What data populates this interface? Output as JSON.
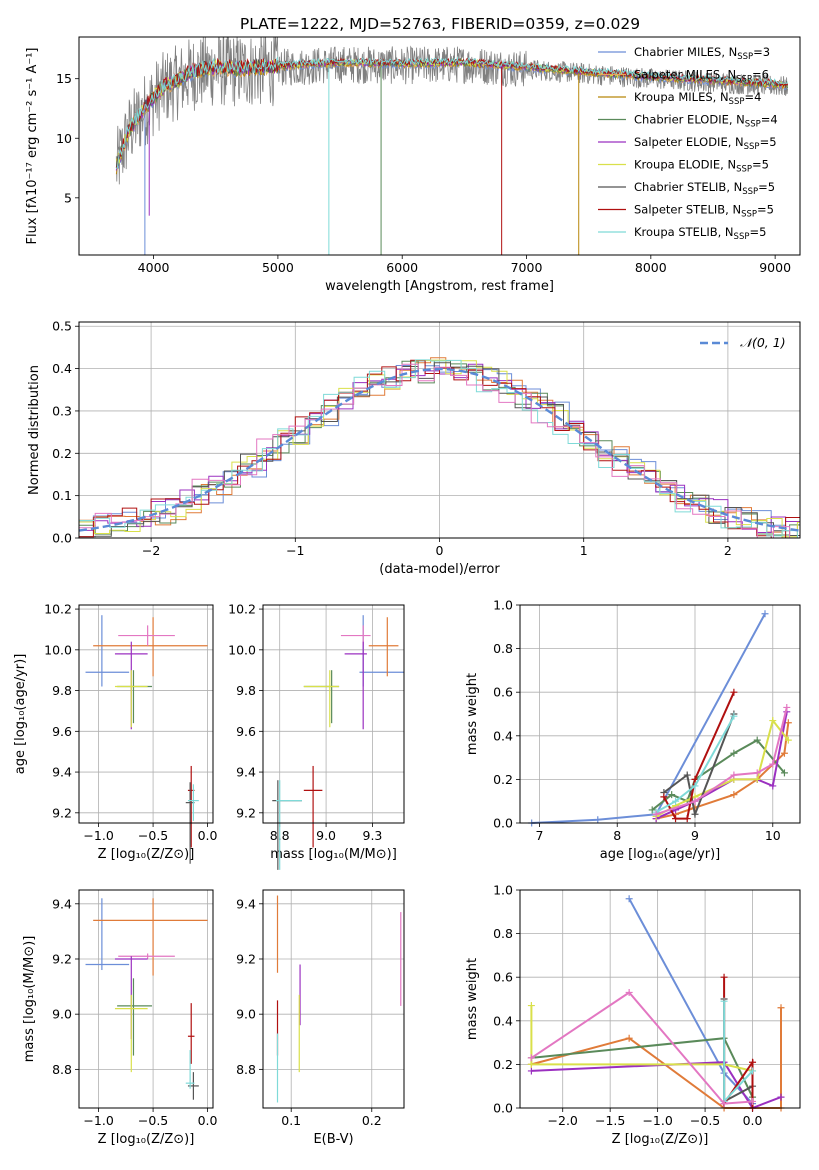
{
  "figure": {
    "title": "PLATE=1222, MJD=52763, FIBERID=0359, z=0.029"
  },
  "chart_data": [
    {
      "id": "spectrum",
      "type": "line",
      "title": "PLATE=1222, MJD=52763, FIBERID=0359, z=0.029",
      "xlabel": "wavelength [Angstrom, rest frame]",
      "ylabel": "Flux [fλ10⁻¹⁷ erg cm⁻² s⁻¹ A⁻¹]",
      "xlim": [
        3400,
        9200
      ],
      "ylim": [
        0.2,
        18.5
      ],
      "xticks": [
        4000,
        5000,
        6000,
        7000,
        8000,
        9000
      ],
      "yticks": [
        5,
        10,
        15
      ],
      "grid": false,
      "legend_position": "top-right",
      "series": [
        {
          "name": "Chabrier MILES, N_SSP=3",
          "color": "#6c8ed8"
        },
        {
          "name": "Salpeter MILES, N_SSP=6",
          "color": "#e6a55a"
        },
        {
          "name": "Kroupa MILES, N_SSP=4",
          "color": "#b8860b"
        },
        {
          "name": "Chabrier ELODIE, N_SSP=4",
          "color": "#5a8a5a"
        },
        {
          "name": "Salpeter ELODIE, N_SSP=5",
          "color": "#9b30c0"
        },
        {
          "name": "Kroupa ELODIE, N_SSP=5",
          "color": "#d9e04a"
        },
        {
          "name": "Chabrier STELIB, N_SSP=5",
          "color": "#555555"
        },
        {
          "name": "Salpeter STELIB, N_SSP=5",
          "color": "#b01010"
        },
        {
          "name": "Kroupa STELIB, N_SSP=5",
          "color": "#7fdad8"
        }
      ],
      "legend_labels": [
        "Chabrier MILES, N",
        "Salpeter MILES, N",
        "Kroupa MILES, N",
        "Chabrier ELODIE, N",
        "Salpeter ELODIE, N",
        "Kroupa ELODIE, N",
        "Chabrier STELIB, N",
        "Salpeter STELIB, N",
        "Kroupa STELIB, N"
      ],
      "legend_counts": [
        "=3",
        "=6",
        "=4",
        "=4",
        "=5",
        "=5",
        "=5",
        "=5",
        "=5"
      ],
      "legend_sub": "SSP",
      "continuum": {
        "x": [
          3700,
          3800,
          3900,
          4000,
          4100,
          4200,
          4300,
          4400,
          4500,
          4700,
          5000,
          5500,
          6000,
          6500,
          7000,
          7500,
          8000,
          8500,
          9000,
          9100
        ],
        "y": [
          7.5,
          10.5,
          12.0,
          13.3,
          14.3,
          14.7,
          15.4,
          15.6,
          15.8,
          15.7,
          15.9,
          16.2,
          16.1,
          16.2,
          15.8,
          15.4,
          15.0,
          14.7,
          14.4,
          14.3
        ]
      },
      "drops": [
        {
          "x": 3930,
          "y_min": 0.2
        },
        {
          "x": 3965,
          "y_min": 3.5
        },
        {
          "x": 5410,
          "y_min": 0.2
        },
        {
          "x": 5830,
          "y_min": 0.2
        },
        {
          "x": 6800,
          "y_min": 0.2
        },
        {
          "x": 7420,
          "y_min": 0.2
        }
      ]
    },
    {
      "id": "residuals",
      "type": "line",
      "xlabel": "(data-model)/error",
      "ylabel": "Normed distribution",
      "xlim": [
        -2.5,
        2.5
      ],
      "ylim": [
        0,
        0.51
      ],
      "xticks": [
        -2,
        -1,
        0,
        1,
        2
      ],
      "yticks": [
        0.0,
        0.1,
        0.2,
        0.3,
        0.4,
        0.5
      ],
      "grid": true,
      "legend_position": "top-right",
      "legend": "𝒩(0, 1)",
      "gaussian": {
        "mean": 0,
        "sigma": 1,
        "color": "#5a8ad6"
      },
      "histogram_colors": [
        "#6c8ed8",
        "#e07b39",
        "#5a8a5a",
        "#9b30c0",
        "#d9e04a",
        "#555555",
        "#b01010",
        "#7fdad8",
        "#e377c2"
      ]
    },
    {
      "id": "age-vs-metallicity",
      "type": "scatter",
      "xlabel": "Z [log₁₀(Z/Z⊙)]",
      "ylabel": "age  [log₁₀(age/yr)]",
      "xlim": [
        -1.18,
        0.05
      ],
      "ylim": [
        9.15,
        10.22
      ],
      "xticks": [
        -1.0,
        -0.5,
        0.0
      ],
      "yticks": [
        9.2,
        9.4,
        9.6,
        9.8,
        10.0,
        10.2
      ],
      "grid": true,
      "points": [
        {
          "x": -0.97,
          "y": 9.89,
          "xerr": [
            0.15,
            0.25
          ],
          "yerr": [
            0.07,
            0.28
          ],
          "color": "#6c8ed8"
        },
        {
          "x": -0.5,
          "y": 10.02,
          "xerr": [
            0.55,
            0.5
          ],
          "yerr": [
            0.15,
            0.14
          ],
          "color": "#e07b39"
        },
        {
          "x": -0.55,
          "y": 10.07,
          "xerr": [
            0.27,
            0.25
          ],
          "yerr": [
            0.05,
            0.05
          ],
          "color": "#e377c2"
        },
        {
          "x": -0.7,
          "y": 9.98,
          "xerr": [
            0.15,
            0.15
          ],
          "yerr": [
            0.37,
            0.06
          ],
          "color": "#9b30c0"
        },
        {
          "x": -0.68,
          "y": 9.82,
          "xerr": [
            0.15,
            0.17
          ],
          "yerr": [
            0.18,
            0.08
          ],
          "color": "#5a8a5a"
        },
        {
          "x": -0.7,
          "y": 9.82,
          "xerr": [
            0.15,
            0.15
          ],
          "yerr": [
            0.2,
            0.08
          ],
          "color": "#d9e04a"
        },
        {
          "x": -0.15,
          "y": 9.31,
          "xerr": [
            0.03,
            0.03
          ],
          "yerr": [
            0.28,
            0.12
          ],
          "color": "#b01010"
        },
        {
          "x": -0.16,
          "y": 9.25,
          "xerr": [
            0.04,
            0.04
          ],
          "yerr": [
            0.3,
            0.1
          ],
          "color": "#555555"
        },
        {
          "x": -0.13,
          "y": 9.26,
          "xerr": [
            0.05,
            0.05
          ],
          "yerr": [
            0.1,
            0.08
          ],
          "color": "#7fdad8"
        }
      ]
    },
    {
      "id": "age-vs-mass",
      "type": "scatter",
      "xlabel": "mass [log₁₀(M/M⊙)]",
      "ylabel": "",
      "xlim": [
        8.66,
        9.42
      ],
      "ylim": [
        9.15,
        10.22
      ],
      "xticks": [
        8.75,
        9.0,
        9.25
      ],
      "yticks": [
        9.2,
        9.4,
        9.6,
        9.8,
        10.0,
        10.2
      ],
      "grid": true,
      "points": [
        {
          "x": 9.2,
          "y": 9.89,
          "xerr": [
            0.02,
            0.22
          ],
          "yerr": [
            0.07,
            0.28
          ],
          "color": "#6c8ed8"
        },
        {
          "x": 9.33,
          "y": 10.02,
          "xerr": [
            0.1,
            0.06
          ],
          "yerr": [
            0.15,
            0.14
          ],
          "color": "#e07b39"
        },
        {
          "x": 9.2,
          "y": 10.07,
          "xerr": [
            0.12,
            0.04
          ],
          "yerr": [
            0.05,
            0.05
          ],
          "color": "#e377c2"
        },
        {
          "x": 9.2,
          "y": 9.98,
          "xerr": [
            0.1,
            0.02
          ],
          "yerr": [
            0.37,
            0.06
          ],
          "color": "#9b30c0"
        },
        {
          "x": 9.03,
          "y": 9.82,
          "xerr": [
            0.15,
            0.04
          ],
          "yerr": [
            0.18,
            0.08
          ],
          "color": "#5a8a5a"
        },
        {
          "x": 9.02,
          "y": 9.82,
          "xerr": [
            0.14,
            0.05
          ],
          "yerr": [
            0.2,
            0.08
          ],
          "color": "#d9e04a"
        },
        {
          "x": 8.93,
          "y": 9.31,
          "xerr": [
            0.05,
            0.05
          ],
          "yerr": [
            0.28,
            0.12
          ],
          "color": "#b01010"
        },
        {
          "x": 8.74,
          "y": 9.26,
          "xerr": [
            0.03,
            0.13
          ],
          "yerr": [
            0.34,
            0.1
          ],
          "color": "#555555"
        },
        {
          "x": 8.75,
          "y": 9.26,
          "xerr": [
            0.02,
            0.12
          ],
          "yerr": [
            0.34,
            0.1
          ],
          "color": "#7fdad8"
        }
      ]
    },
    {
      "id": "mass-weight-vs-age",
      "type": "line",
      "xlabel": "age  [log₁₀(age/yr)]",
      "ylabel": "mass weight",
      "xlim": [
        6.75,
        10.35
      ],
      "ylim": [
        0,
        1.0
      ],
      "xticks": [
        7,
        8,
        9,
        10
      ],
      "yticks": [
        0.0,
        0.2,
        0.4,
        0.6,
        0.8,
        1.0
      ],
      "grid": true,
      "series": [
        {
          "color": "#6c8ed8",
          "x": [
            6.9,
            7.75,
            8.5,
            9.9
          ],
          "y": [
            0.0,
            0.015,
            0.04,
            0.96
          ]
        },
        {
          "color": "#e07b39",
          "x": [
            8.5,
            8.75,
            9.0,
            9.5,
            9.8,
            10.15,
            10.2
          ],
          "y": [
            0.02,
            0.04,
            0.07,
            0.13,
            0.2,
            0.32,
            0.46
          ]
        },
        {
          "color": "#5a8a5a",
          "x": [
            8.45,
            8.7,
            8.9,
            9.0,
            9.5,
            9.8,
            10.15
          ],
          "y": [
            0.06,
            0.13,
            0.1,
            0.2,
            0.32,
            0.38,
            0.23
          ]
        },
        {
          "color": "#9b30c0",
          "x": [
            8.5,
            8.75,
            9.0,
            9.5,
            9.8,
            10.0,
            10.18
          ],
          "y": [
            0.02,
            0.06,
            0.1,
            0.2,
            0.2,
            0.17,
            0.51
          ]
        },
        {
          "color": "#d9e04a",
          "x": [
            8.5,
            8.75,
            9.0,
            9.5,
            9.8,
            10.0,
            10.2
          ],
          "y": [
            0.03,
            0.08,
            0.12,
            0.2,
            0.2,
            0.47,
            0.38
          ]
        },
        {
          "color": "#555555",
          "x": [
            8.6,
            8.9,
            9.0,
            9.5
          ],
          "y": [
            0.14,
            0.22,
            0.04,
            0.5
          ]
        },
        {
          "color": "#b01010",
          "x": [
            8.6,
            8.75,
            8.9,
            9.0,
            9.5
          ],
          "y": [
            0.12,
            0.02,
            0.02,
            0.2,
            0.6
          ]
        },
        {
          "color": "#7fdad8",
          "x": [
            8.5,
            8.75,
            9.0,
            9.5
          ],
          "y": [
            0.05,
            0.1,
            0.17,
            0.49
          ]
        },
        {
          "color": "#e377c2",
          "x": [
            8.5,
            9.0,
            9.5,
            9.8,
            10.0,
            10.18
          ],
          "y": [
            0.04,
            0.1,
            0.22,
            0.23,
            0.27,
            0.53
          ]
        }
      ]
    },
    {
      "id": "mass-vs-metallicity",
      "type": "scatter",
      "xlabel": "Z [log₁₀(Z/Z⊙)]",
      "ylabel": "mass [log₁₀(M/M⊙)]",
      "xlim": [
        -1.18,
        0.05
      ],
      "ylim": [
        8.66,
        9.45
      ],
      "xticks": [
        -1.0,
        -0.5,
        0.0
      ],
      "yticks": [
        8.8,
        9.0,
        9.2,
        9.4
      ],
      "grid": true,
      "points": [
        {
          "x": -0.97,
          "y": 9.18,
          "xerr": [
            0.15,
            0.25
          ],
          "yerr": [
            0.02,
            0.24
          ],
          "color": "#6c8ed8"
        },
        {
          "x": -0.5,
          "y": 9.34,
          "xerr": [
            0.55,
            0.5
          ],
          "yerr": [
            0.2,
            0.08
          ],
          "color": "#e07b39"
        },
        {
          "x": -0.55,
          "y": 9.21,
          "xerr": [
            0.27,
            0.25
          ],
          "yerr": [
            0.01,
            0.01
          ],
          "color": "#e377c2"
        },
        {
          "x": -0.7,
          "y": 9.2,
          "xerr": [
            0.15,
            0.15
          ],
          "yerr": [
            0.29,
            0.01
          ],
          "color": "#9b30c0"
        },
        {
          "x": -0.68,
          "y": 9.03,
          "xerr": [
            0.15,
            0.17
          ],
          "yerr": [
            0.18,
            0.1
          ],
          "color": "#5a8a5a"
        },
        {
          "x": -0.7,
          "y": 9.02,
          "xerr": [
            0.15,
            0.15
          ],
          "yerr": [
            0.23,
            0.05
          ],
          "color": "#d9e04a"
        },
        {
          "x": -0.15,
          "y": 8.92,
          "xerr": [
            0.03,
            0.03
          ],
          "yerr": [
            0.1,
            0.12
          ],
          "color": "#b01010"
        },
        {
          "x": -0.13,
          "y": 8.74,
          "xerr": [
            0.05,
            0.05
          ],
          "yerr": [
            0.05,
            0.05
          ],
          "color": "#555555"
        },
        {
          "x": -0.16,
          "y": 8.75,
          "xerr": [
            0.04,
            0.04
          ],
          "yerr": [
            0.02,
            0.12
          ],
          "color": "#7fdad8"
        }
      ]
    },
    {
      "id": "mass-vs-ebv",
      "type": "scatter",
      "xlabel": "E(B-V)",
      "ylabel": "",
      "xlim": [
        0.065,
        0.24
      ],
      "ylim": [
        8.66,
        9.45
      ],
      "xticks": [
        0.1,
        0.2
      ],
      "yticks": [
        8.8,
        9.0,
        9.2,
        9.4
      ],
      "grid": true,
      "points": [
        {
          "x": 0.083,
          "y": 9.4,
          "yerr": [
            0.25,
            0.03
          ],
          "color": "#e07b39"
        },
        {
          "x": 0.083,
          "y": 8.95,
          "yerr": [
            0.1,
            0.1
          ],
          "color": "#b01010"
        },
        {
          "x": 0.083,
          "y": 8.8,
          "yerr": [
            0.12,
            0.13
          ],
          "color": "#7fdad8"
        },
        {
          "x": 0.111,
          "y": 9.1,
          "yerr": [
            0.14,
            0.08
          ],
          "color": "#9b30c0"
        },
        {
          "x": 0.11,
          "y": 8.97,
          "yerr": [
            0.18,
            0.1
          ],
          "color": "#d9e04a"
        },
        {
          "x": 0.236,
          "y": 9.2,
          "yerr": [
            0.17,
            0.17
          ],
          "color": "#e377c2"
        }
      ]
    },
    {
      "id": "mass-weight-vs-metallicity",
      "type": "line",
      "xlabel": "Z [log₁₀(Z/Z⊙)]",
      "ylabel": "mass weight",
      "xlim": [
        -2.45,
        0.5
      ],
      "ylim": [
        0,
        1.0
      ],
      "xticks": [
        -2.0,
        -1.5,
        -1.0,
        -0.5,
        0.0
      ],
      "yticks": [
        0.0,
        0.2,
        0.4,
        0.6,
        0.8,
        1.0
      ],
      "grid": true,
      "series": [
        {
          "color": "#6c8ed8",
          "x": [
            -1.3,
            -0.3,
            0.0
          ],
          "y": [
            0.96,
            0.16,
            0.02
          ]
        },
        {
          "color": "#e07b39",
          "x": [
            -2.33,
            -1.3,
            -0.3,
            0.3,
            0.3
          ],
          "y": [
            0.2,
            0.32,
            0.0,
            0.0,
            0.46
          ]
        },
        {
          "color": "#5a8a5a",
          "x": [
            -2.33,
            -0.3,
            0.0
          ],
          "y": [
            0.23,
            0.32,
            0.05
          ]
        },
        {
          "color": "#9b30c0",
          "x": [
            -2.33,
            -0.3,
            0.0,
            0.3
          ],
          "y": [
            0.17,
            0.21,
            0.0,
            0.05
          ]
        },
        {
          "color": "#d9e04a",
          "x": [
            -2.33,
            -2.33,
            -0.3,
            0.0
          ],
          "y": [
            0.47,
            0.2,
            0.2,
            0.17
          ]
        },
        {
          "color": "#555555",
          "x": [
            -0.3,
            -0.3,
            0.0
          ],
          "y": [
            0.5,
            0.03,
            0.1
          ]
        },
        {
          "color": "#b01010",
          "x": [
            -0.3,
            -0.3,
            0.0,
            0.0
          ],
          "y": [
            0.6,
            0.02,
            0.21,
            0.0
          ]
        },
        {
          "color": "#7fdad8",
          "x": [
            -0.3,
            -0.3,
            0.0
          ],
          "y": [
            0.49,
            0.03,
            0.17
          ]
        },
        {
          "color": "#e377c2",
          "x": [
            -2.33,
            -1.3,
            -0.3,
            0.0
          ],
          "y": [
            0.23,
            0.53,
            0.02,
            0.03
          ]
        }
      ]
    }
  ]
}
